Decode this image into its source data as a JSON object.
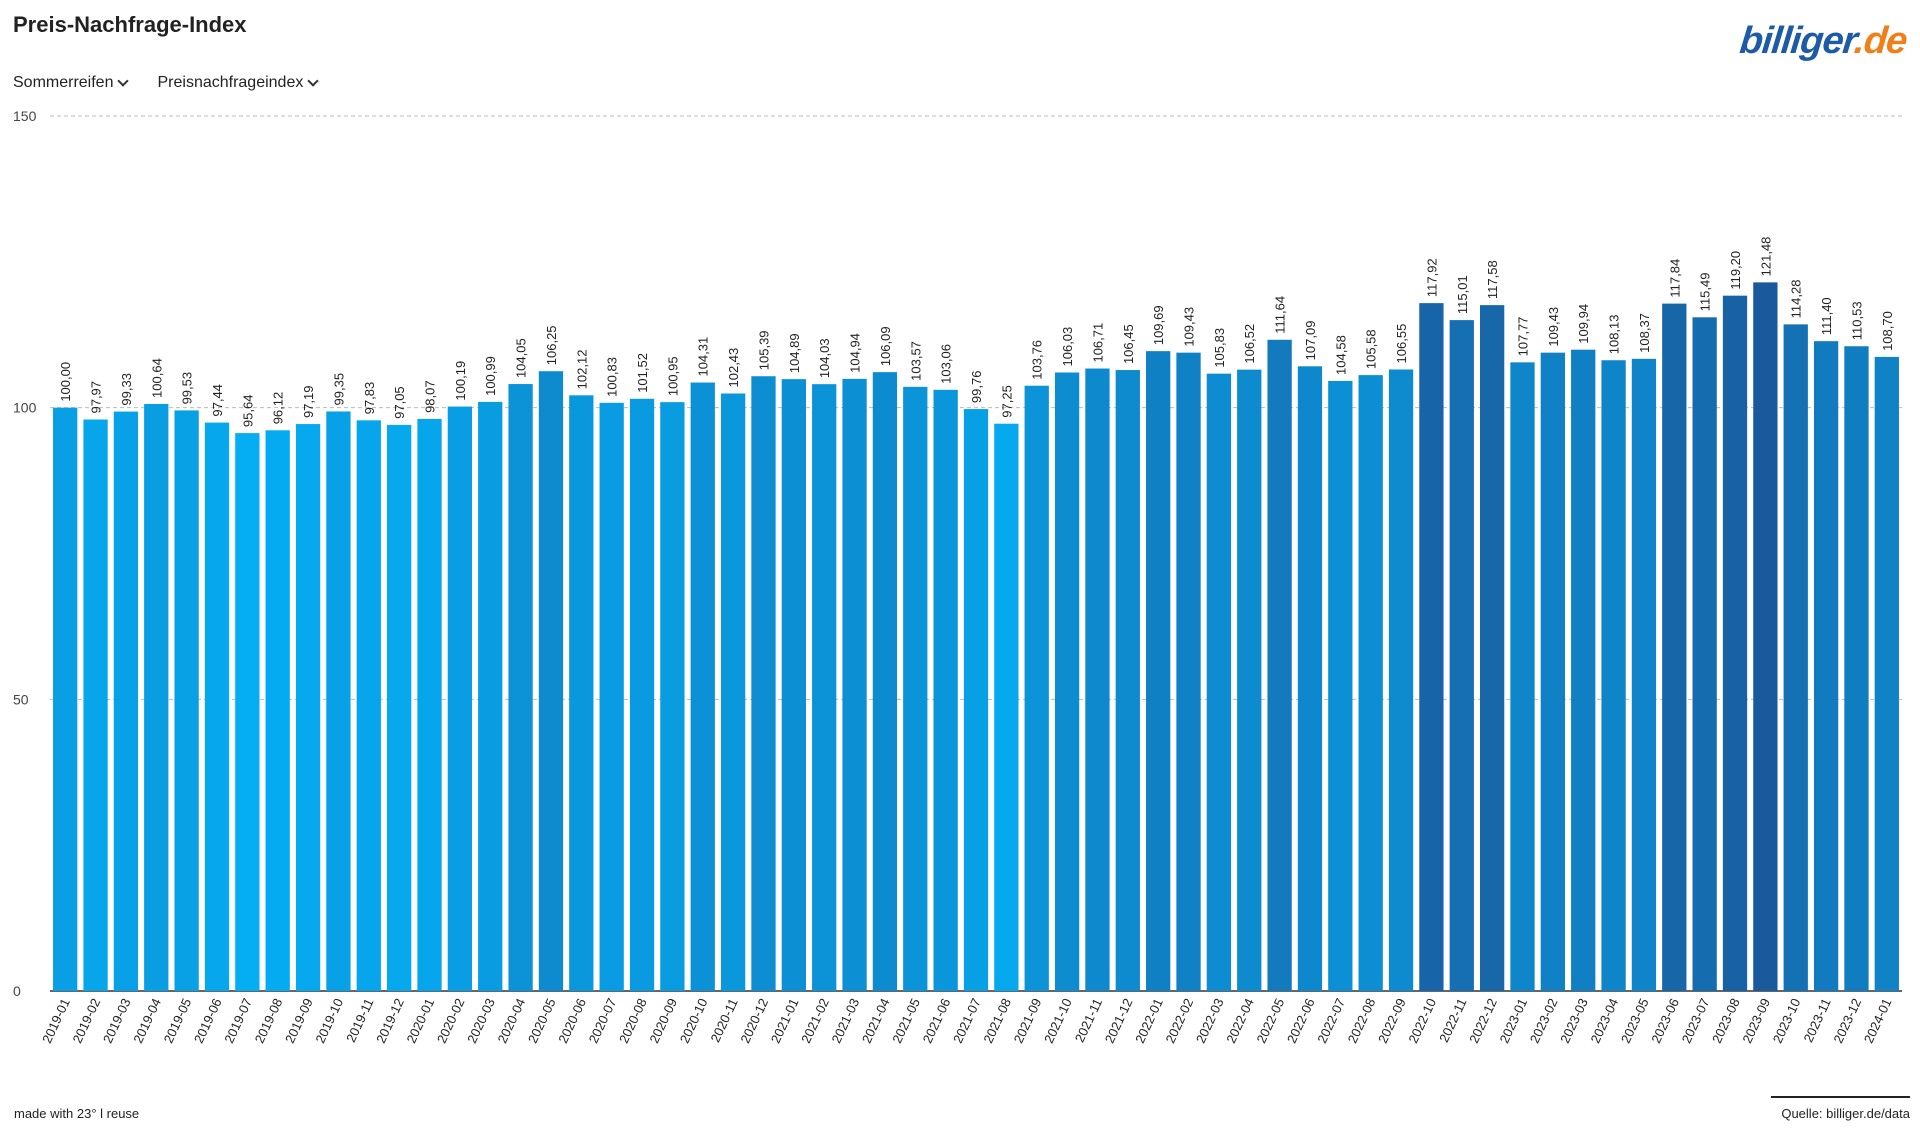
{
  "header": {
    "title": "Preis-Nachfrage-Index"
  },
  "logo": {
    "part1": "billiger",
    "part2": ".de"
  },
  "filters": [
    {
      "label": "Sommerreifen"
    },
    {
      "label": "Preisnachfrageindex"
    }
  ],
  "footer": {
    "made_with": "made with 23° l reuse",
    "source": "Quelle: billiger.de/data"
  },
  "colors": {
    "light": "#05adf3",
    "dark": "#1a5a9c"
  },
  "chart_data": {
    "type": "bar",
    "ylim": [
      0,
      150
    ],
    "yticks": [
      0,
      50,
      100,
      150
    ],
    "grid": true,
    "categories": [
      "2019-01",
      "2019-02",
      "2019-03",
      "2019-04",
      "2019-05",
      "2019-06",
      "2019-07",
      "2019-08",
      "2019-09",
      "2019-10",
      "2019-11",
      "2019-12",
      "2020-01",
      "2020-02",
      "2020-03",
      "2020-04",
      "2020-05",
      "2020-06",
      "2020-07",
      "2020-08",
      "2020-09",
      "2020-10",
      "2020-11",
      "2020-12",
      "2021-01",
      "2021-02",
      "2021-03",
      "2021-04",
      "2021-05",
      "2021-06",
      "2021-07",
      "2021-08",
      "2021-09",
      "2021-10",
      "2021-11",
      "2021-12",
      "2022-01",
      "2022-02",
      "2022-03",
      "2022-04",
      "2022-05",
      "2022-06",
      "2022-07",
      "2022-08",
      "2022-09",
      "2022-10",
      "2022-11",
      "2022-12",
      "2023-01",
      "2023-02",
      "2023-03",
      "2023-04",
      "2023-05",
      "2023-06",
      "2023-07",
      "2023-08",
      "2023-09",
      "2023-10",
      "2023-11",
      "2023-12",
      "2024-01"
    ],
    "values": [
      100.0,
      97.97,
      99.33,
      100.64,
      99.53,
      97.44,
      95.64,
      96.12,
      97.19,
      99.35,
      97.83,
      97.05,
      98.07,
      100.19,
      100.99,
      104.05,
      106.25,
      102.12,
      100.83,
      101.52,
      100.95,
      104.31,
      102.43,
      105.39,
      104.89,
      104.03,
      104.94,
      106.09,
      103.57,
      103.06,
      99.76,
      97.25,
      103.76,
      106.03,
      106.71,
      106.45,
      109.69,
      109.43,
      105.83,
      106.52,
      111.64,
      107.09,
      104.58,
      105.58,
      106.55,
      117.92,
      115.01,
      117.58,
      107.77,
      109.43,
      109.94,
      108.13,
      108.37,
      117.84,
      115.49,
      119.2,
      121.48,
      114.28,
      111.4,
      110.53,
      108.7
    ],
    "labels": [
      "100,00",
      "97,97",
      "99,33",
      "100,64",
      "99,53",
      "97,44",
      "95,64",
      "96,12",
      "97,19",
      "99,35",
      "97,83",
      "97,05",
      "98,07",
      "100,19",
      "100,99",
      "104,05",
      "106,25",
      "102,12",
      "100,83",
      "101,52",
      "100,95",
      "104,31",
      "102,43",
      "105,39",
      "104,89",
      "104,03",
      "104,94",
      "106,09",
      "103,57",
      "103,06",
      "99,76",
      "97,25",
      "103,76",
      "106,03",
      "106,71",
      "106,45",
      "109,69",
      "109,43",
      "105,83",
      "106,52",
      "111,64",
      "107,09",
      "104,58",
      "105,58",
      "106,55",
      "117,92",
      "115,01",
      "117,58",
      "107,77",
      "109,43",
      "109,94",
      "108,13",
      "108,37",
      "117,84",
      "115,49",
      "119,20",
      "121,48",
      "114,28",
      "111,40",
      "110,53",
      "108,70"
    ]
  }
}
